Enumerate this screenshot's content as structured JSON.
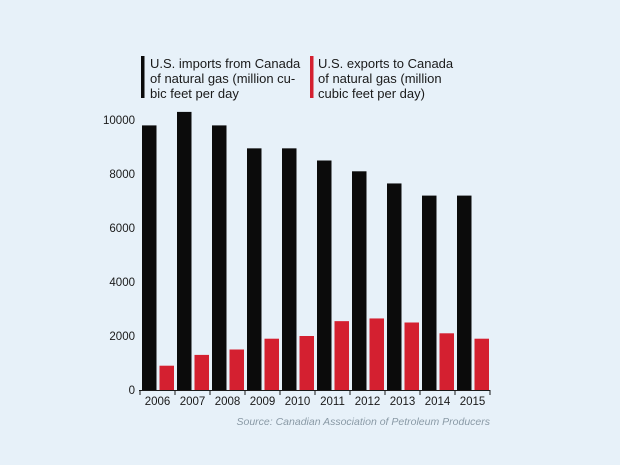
{
  "chart_data": {
    "type": "bar",
    "categories": [
      "2006",
      "2007",
      "2008",
      "2009",
      "2010",
      "2011",
      "2012",
      "2013",
      "2014",
      "2015"
    ],
    "series": [
      {
        "name_lines": [
          "U.S. imports from Canada",
          "of natural gas (million cu-",
          "bic feet per day"
        ],
        "color": "#0b0b0b",
        "values": [
          9800,
          10300,
          9800,
          8950,
          8950,
          8500,
          8100,
          7650,
          7200,
          7200
        ]
      },
      {
        "name_lines": [
          "U.S. exports to Canada",
          "of natural gas (million",
          "cubic feet per day)"
        ],
        "color": "#d42030",
        "values": [
          900,
          1300,
          1500,
          1900,
          2000,
          2550,
          2650,
          2500,
          2100,
          1900
        ]
      }
    ],
    "y_ticks": [
      "10000",
      "8000",
      "6000",
      "4000",
      "2000",
      "0"
    ],
    "y_tick_values": [
      10000,
      8000,
      6000,
      4000,
      2000,
      0
    ],
    "ylim": [
      0,
      10500
    ],
    "grid": false,
    "legend_position": "top",
    "source": "Source: Canadian Association of Petroleum Producers"
  }
}
